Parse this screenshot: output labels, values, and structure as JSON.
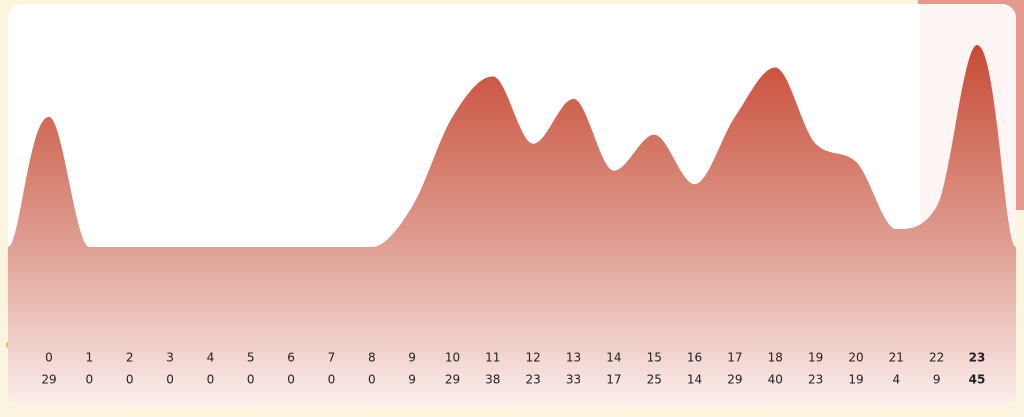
{
  "chart_data": {
    "type": "area",
    "categories": [
      "0",
      "1",
      "2",
      "3",
      "4",
      "5",
      "6",
      "7",
      "8",
      "9",
      "10",
      "11",
      "12",
      "13",
      "14",
      "15",
      "16",
      "17",
      "18",
      "19",
      "20",
      "21",
      "22",
      "23"
    ],
    "values": [
      29,
      0,
      0,
      0,
      0,
      0,
      0,
      0,
      0,
      9,
      29,
      38,
      23,
      33,
      17,
      25,
      14,
      29,
      40,
      23,
      19,
      4,
      9,
      45
    ],
    "color": "#c84a35",
    "highlight_index": 23
  }
}
